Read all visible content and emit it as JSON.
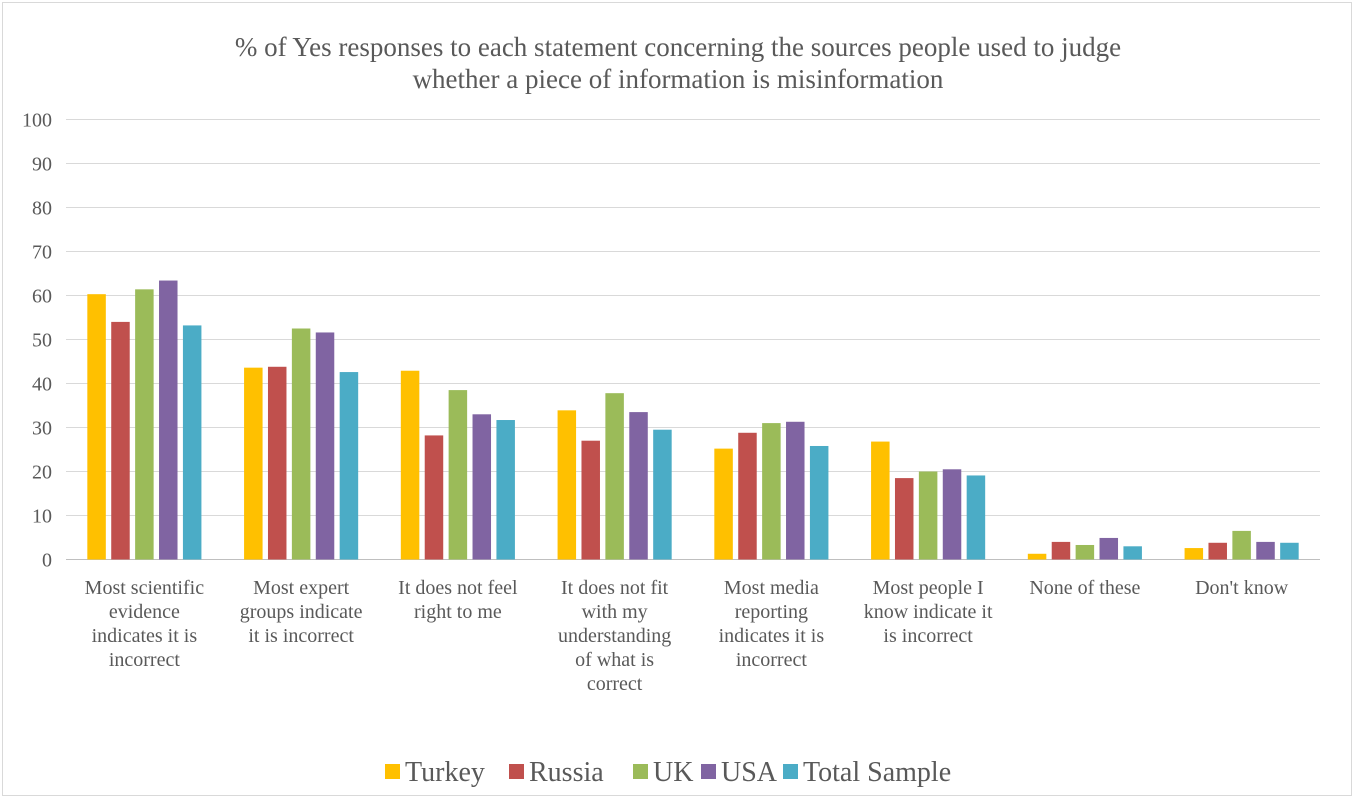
{
  "chart_data": {
    "type": "bar",
    "title_lines": [
      "% of Yes responses to each statement concerning the sources people used to judge",
      "whether a piece of information is misinformation"
    ],
    "xlabel": "",
    "ylabel": "",
    "ylim": [
      0,
      100
    ],
    "yticks": [
      "0",
      "10",
      "20",
      "30",
      "40",
      "50",
      "60",
      "70",
      "80",
      "90",
      "100"
    ],
    "grid": true,
    "legend_position": "bottom",
    "categories": [
      [
        "Most scientific",
        "evidence",
        "indicates it is",
        "incorrect"
      ],
      [
        "Most expert",
        "groups indicate",
        "it is incorrect"
      ],
      [
        "It does not feel",
        "right to me"
      ],
      [
        "It does not fit",
        "with my",
        "understanding",
        "of what is",
        "correct"
      ],
      [
        "Most media",
        "reporting",
        "indicates it is",
        "incorrect"
      ],
      [
        "Most people I",
        "know indicate it",
        "is incorrect"
      ],
      [
        "None of these"
      ],
      [
        "Don't know"
      ]
    ],
    "series": [
      {
        "name": "Turkey",
        "color": "#ffc000",
        "values": [
          60.3,
          43.6,
          42.9,
          33.9,
          25.2,
          26.8,
          1.3,
          2.6
        ]
      },
      {
        "name": "Russia",
        "color": "#c0504d",
        "values": [
          54.0,
          43.8,
          28.2,
          27.0,
          28.8,
          18.5,
          4.0,
          3.8
        ]
      },
      {
        "name": "UK",
        "color": "#9bbb59",
        "values": [
          61.4,
          52.5,
          38.5,
          37.8,
          31.0,
          20.0,
          3.3,
          6.5
        ]
      },
      {
        "name": "USA",
        "color": "#8064a2",
        "values": [
          63.4,
          51.6,
          33.0,
          33.5,
          31.3,
          20.5,
          4.9,
          4.0
        ]
      },
      {
        "name": "Total Sample",
        "color": "#4bacc6",
        "values": [
          53.2,
          42.6,
          31.7,
          29.5,
          25.8,
          19.1,
          3.0,
          3.8
        ]
      }
    ]
  }
}
